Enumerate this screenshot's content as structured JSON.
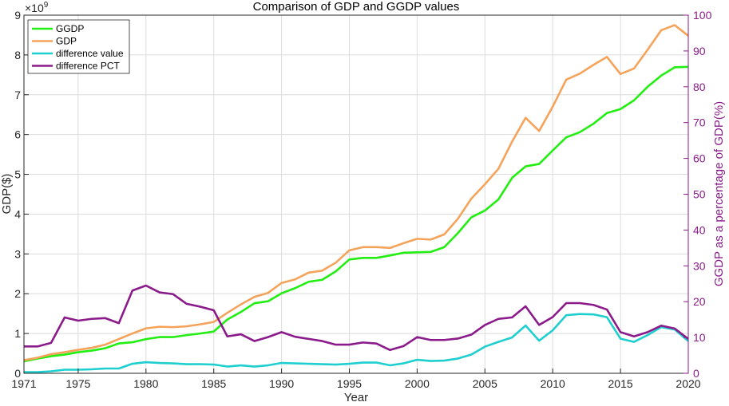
{
  "chart_data": {
    "type": "line",
    "title": "Comparison of GDP and GGDP values",
    "xlabel": "Year",
    "ylabel_left": "GDP($)",
    "ylabel_right": "GGDP as a percentage of GDP(%)",
    "left_exponent_base": "×10",
    "left_exponent_power": "9",
    "xlim": [
      1971,
      2020
    ],
    "ylim_left": [
      0,
      9
    ],
    "ylim_right": [
      0,
      100
    ],
    "xticks": [
      "1971",
      "1975",
      "1980",
      "1985",
      "1990",
      "1995",
      "2000",
      "2005",
      "2010",
      "2015",
      "2020"
    ],
    "yticks_left": [
      "0",
      "1",
      "2",
      "3",
      "4",
      "5",
      "6",
      "7",
      "8",
      "9"
    ],
    "yticks_right": [
      "0",
      "10",
      "20",
      "30",
      "40",
      "50",
      "60",
      "70",
      "80",
      "90",
      "100"
    ],
    "legend_position": "top-left",
    "grid": true,
    "x": [
      1971,
      1972,
      1973,
      1974,
      1975,
      1976,
      1977,
      1978,
      1979,
      1980,
      1981,
      1982,
      1983,
      1984,
      1985,
      1986,
      1987,
      1988,
      1989,
      1990,
      1991,
      1992,
      1993,
      1994,
      1995,
      1996,
      1997,
      1998,
      1999,
      2000,
      2001,
      2002,
      2003,
      2004,
      2005,
      2006,
      2007,
      2008,
      2009,
      2010,
      2011,
      2012,
      2013,
      2014,
      2015,
      2016,
      2017,
      2018,
      2019,
      2020
    ],
    "series": [
      {
        "name": "GGDP",
        "axis": "left",
        "color": "#22ee11",
        "values": [
          0.3,
          0.37,
          0.43,
          0.47,
          0.53,
          0.57,
          0.63,
          0.75,
          0.78,
          0.86,
          0.91,
          0.91,
          0.96,
          1.0,
          1.05,
          1.35,
          1.54,
          1.76,
          1.81,
          2.01,
          2.14,
          2.3,
          2.35,
          2.56,
          2.86,
          2.9,
          2.9,
          2.96,
          3.03,
          3.04,
          3.05,
          3.17,
          3.52,
          3.92,
          4.09,
          4.37,
          4.91,
          5.2,
          5.26,
          5.6,
          5.93,
          6.06,
          6.27,
          6.54,
          6.64,
          6.86,
          7.2,
          7.48,
          7.69,
          7.7
        ]
      },
      {
        "name": "GDP",
        "axis": "left",
        "color": "#f5a35a",
        "values": [
          0.33,
          0.39,
          0.48,
          0.53,
          0.59,
          0.64,
          0.72,
          0.86,
          1.0,
          1.13,
          1.17,
          1.16,
          1.18,
          1.23,
          1.29,
          1.52,
          1.73,
          1.92,
          2.02,
          2.27,
          2.36,
          2.53,
          2.58,
          2.78,
          3.09,
          3.17,
          3.17,
          3.15,
          3.27,
          3.38,
          3.36,
          3.49,
          3.88,
          4.39,
          4.75,
          5.14,
          5.82,
          6.42,
          6.09,
          6.7,
          7.38,
          7.53,
          7.75,
          7.95,
          7.52,
          7.66,
          8.13,
          8.62,
          8.75,
          8.48
        ]
      },
      {
        "name": "difference value",
        "axis": "left",
        "color": "#1fcfcf",
        "values": [
          0.03,
          0.03,
          0.05,
          0.09,
          0.09,
          0.1,
          0.12,
          0.12,
          0.24,
          0.28,
          0.26,
          0.25,
          0.23,
          0.23,
          0.22,
          0.17,
          0.2,
          0.17,
          0.2,
          0.26,
          0.25,
          0.24,
          0.23,
          0.22,
          0.24,
          0.27,
          0.27,
          0.2,
          0.25,
          0.34,
          0.31,
          0.32,
          0.37,
          0.47,
          0.67,
          0.79,
          0.9,
          1.2,
          0.82,
          1.08,
          1.46,
          1.49,
          1.48,
          1.41,
          0.87,
          0.79,
          0.96,
          1.16,
          1.1,
          0.81
        ]
      },
      {
        "name": "difference PCT",
        "axis": "right",
        "color": "#8b1a8b",
        "values": [
          7.5,
          7.5,
          8.5,
          15.6,
          14.7,
          15.2,
          15.4,
          14.0,
          23.1,
          24.5,
          22.6,
          22.1,
          19.4,
          18.6,
          17.6,
          10.3,
          10.9,
          9.0,
          10.1,
          11.5,
          10.2,
          9.6,
          9.0,
          8.0,
          8.0,
          8.6,
          8.3,
          6.5,
          7.6,
          10.1,
          9.3,
          9.3,
          9.7,
          10.8,
          13.5,
          15.2,
          15.6,
          18.7,
          13.5,
          15.7,
          19.6,
          19.6,
          19.1,
          17.8,
          11.5,
          10.3,
          11.5,
          13.3,
          12.5,
          9.6
        ]
      }
    ]
  }
}
